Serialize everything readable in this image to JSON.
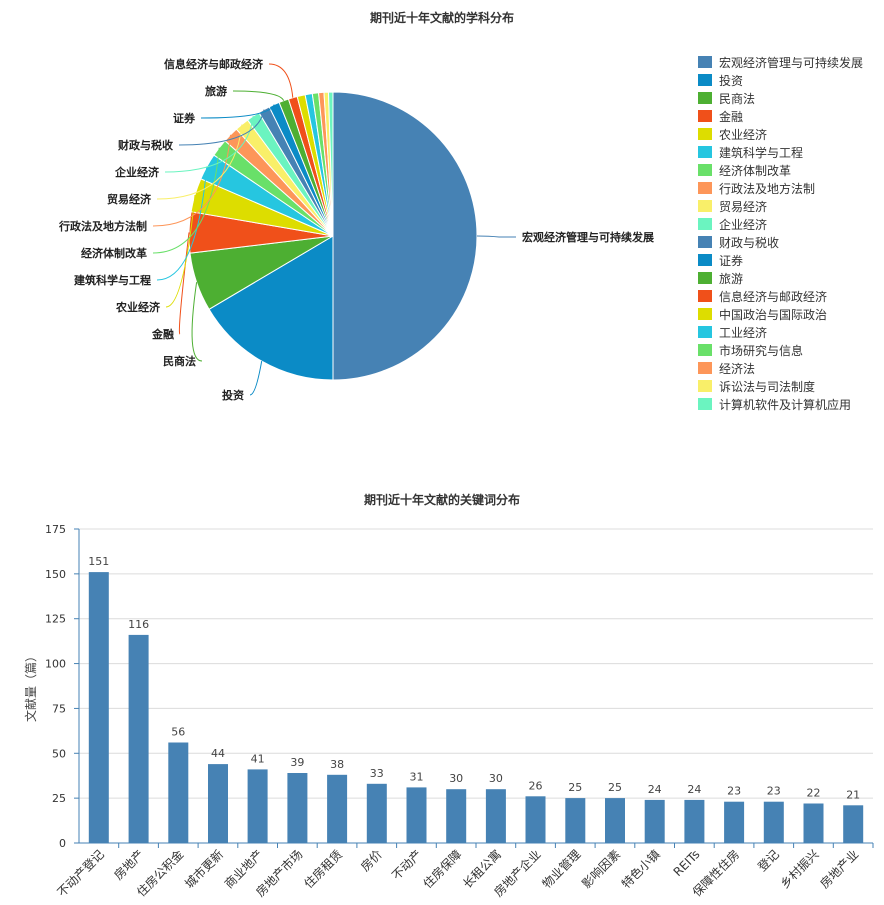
{
  "pie_chart": {
    "title": "期刊近十年文献的学科分布"
  },
  "bar_chart": {
    "title": "期刊近十年文献的关键词分布"
  },
  "chart_data": [
    {
      "type": "pie",
      "title": "期刊近十年文献的学科分布",
      "legend_position": "right",
      "categories": [
        "宏观经济管理与可持续发展",
        "投资",
        "民商法",
        "金融",
        "农业经济",
        "建筑科学与工程",
        "经济体制改革",
        "行政法及地方法制",
        "贸易经济",
        "企业经济",
        "财政与税收",
        "证券",
        "旅游",
        "信息经济与邮政经济",
        "中国政治与国际政治",
        "工业经济",
        "市场研究与信息",
        "经济法",
        "诉讼法与司法制度",
        "计算机软件及计算机应用"
      ],
      "values": [
        50.0,
        16.5,
        6.6,
        4.6,
        3.8,
        3.0,
        2.0,
        1.8,
        1.6,
        1.5,
        1.3,
        1.2,
        1.1,
        1.0,
        0.9,
        0.8,
        0.7,
        0.6,
        0.5,
        0.5
      ],
      "colors": [
        "#4682b4",
        "#0b8bc6",
        "#4daf32",
        "#f0501a",
        "#dddd00",
        "#26c6e0",
        "#69e069",
        "#fd9659",
        "#f9ef69",
        "#6bf4c0",
        "#4682b4",
        "#0b8bc6",
        "#4daf32",
        "#f0501a",
        "#dddd00",
        "#26c6e0",
        "#69e069",
        "#fd9659",
        "#f9ef69",
        "#6bf4c0"
      ],
      "labeled_slices": [
        0,
        1,
        2,
        3,
        4,
        5,
        6,
        7,
        8,
        9,
        10,
        11,
        12,
        13
      ]
    },
    {
      "type": "bar",
      "title": "期刊近十年文献的关键词分布",
      "ylabel": "文献量（篇）",
      "ylim": [
        0,
        175
      ],
      "yticks": [
        0,
        25,
        50,
        75,
        100,
        125,
        150,
        175
      ],
      "grid": true,
      "color": "#4682b4",
      "categories": [
        "不动产登记",
        "房地产",
        "住房公积金",
        "城市更新",
        "商业地产",
        "房地产市场",
        "住房租赁",
        "房价",
        "不动产",
        "住房保障",
        "长租公寓",
        "房地产企业",
        "物业管理",
        "影响因素",
        "特色小镇",
        "REITs",
        "保障性住房",
        "登记",
        "乡村振兴",
        "房地产业"
      ],
      "values": [
        151,
        116,
        56,
        44,
        41,
        39,
        38,
        33,
        31,
        30,
        30,
        26,
        25,
        25,
        24,
        24,
        23,
        23,
        22,
        21
      ]
    }
  ]
}
